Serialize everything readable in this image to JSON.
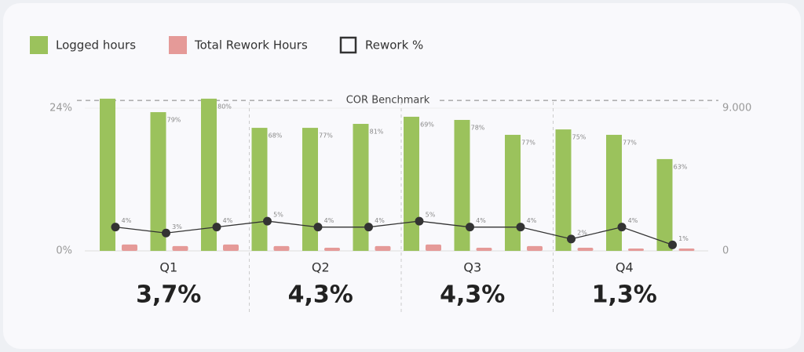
{
  "chart_data": {
    "type": "bar_line",
    "categories": [
      null,
      null,
      null,
      null,
      null,
      null,
      null,
      null,
      null,
      null,
      null,
      null
    ],
    "series": [
      {
        "name": "Logged hours",
        "color": "#9bc25c",
        "axis": "y2",
        "values": [
          9600,
          8750,
          9600,
          7760,
          7760,
          8010,
          8460,
          8260,
          7320,
          7660,
          7320,
          5790
        ],
        "bar_labels": [
          null,
          "79%",
          "80%",
          "68%",
          "77%",
          "81%",
          "69%",
          "78%",
          "77%",
          "75%",
          "77%",
          "63%"
        ]
      },
      {
        "name": "Total Rework Hours",
        "color": "#e59a98",
        "axis": "y2",
        "values": [
          400,
          300,
          400,
          300,
          200,
          300,
          400,
          200,
          300,
          200,
          150,
          150
        ]
      },
      {
        "name": "Rework %",
        "color": "#333333",
        "axis": "y",
        "values": [
          4,
          3,
          4,
          5,
          4,
          4,
          5,
          4,
          4,
          2,
          4,
          1
        ],
        "value_labels": [
          "4%",
          "3%",
          "4%",
          "5%",
          "4%",
          "4%",
          "5%",
          "4%",
          "4%",
          "2%",
          "4%",
          "1%"
        ]
      }
    ],
    "groups": [
      {
        "label": "Q1",
        "summary": "3,7%"
      },
      {
        "label": "Q2",
        "summary": "4,3%"
      },
      {
        "label": "Q3",
        "summary": "4,3%"
      },
      {
        "label": "Q4",
        "summary": "1,3%"
      }
    ],
    "benchmark": {
      "label": "COR Benchmark",
      "value": 25.3
    },
    "ylim": [
      0,
      24
    ],
    "yticks": [
      {
        "value": 0,
        "label": "0%"
      },
      {
        "value": 24,
        "label": "24%"
      }
    ],
    "y2lim": [
      0,
      9000
    ],
    "y2ticks": [
      0,
      {
        "value": 9000,
        "label": "9.000"
      }
    ],
    "grid": true
  }
}
